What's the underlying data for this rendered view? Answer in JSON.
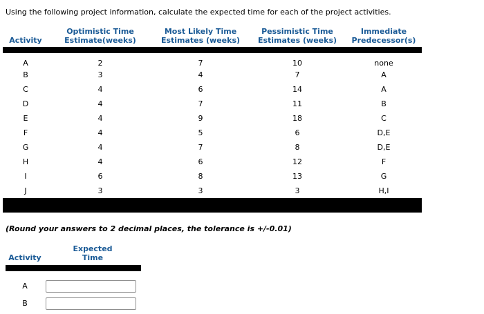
{
  "instruction": "Using the following project information, calculate the expected time for each of the project activities.",
  "main_table": {
    "headers": [
      "Activity",
      "Optimistic Time\nEstimate(weeks)",
      "Most Likely Time\nEstimates (weeks)",
      "Pessimistic Time\nEstimates (weeks)",
      "Immediate\nPredecessor(s)"
    ],
    "rows": [
      {
        "activity": "A",
        "optimistic": "2",
        "most_likely": "7",
        "pessimistic": "10",
        "predecessors": "none"
      },
      {
        "activity": "B",
        "optimistic": "3",
        "most_likely": "4",
        "pessimistic": "7",
        "predecessors": "A"
      },
      {
        "activity": "C",
        "optimistic": "4",
        "most_likely": "6",
        "pessimistic": "14",
        "predecessors": "A"
      },
      {
        "activity": "D",
        "optimistic": "4",
        "most_likely": "7",
        "pessimistic": "11",
        "predecessors": "B"
      },
      {
        "activity": "E",
        "optimistic": "4",
        "most_likely": "9",
        "pessimistic": "18",
        "predecessors": "C"
      },
      {
        "activity": "F",
        "optimistic": "4",
        "most_likely": "5",
        "pessimistic": "6",
        "predecessors": "D,E"
      },
      {
        "activity": "G",
        "optimistic": "4",
        "most_likely": "7",
        "pessimistic": "8",
        "predecessors": "D,E"
      },
      {
        "activity": "H",
        "optimistic": "4",
        "most_likely": "6",
        "pessimistic": "12",
        "predecessors": "F"
      },
      {
        "activity": "I",
        "optimistic": "6",
        "most_likely": "8",
        "pessimistic": "13",
        "predecessors": "G"
      },
      {
        "activity": "J",
        "optimistic": "3",
        "most_likely": "3",
        "pessimistic": "3",
        "predecessors": "H,I"
      }
    ]
  },
  "round_note": "(Round your answers to 2 decimal places, the tolerance is +/-0.01)",
  "answer_table": {
    "headers": [
      "Activity",
      "Expected\nTime"
    ],
    "rows": [
      {
        "activity": "A",
        "value": ""
      },
      {
        "activity": "B",
        "value": ""
      }
    ]
  },
  "colors": {
    "header_blue": "#1a5a96",
    "divider_black": "#000000"
  }
}
